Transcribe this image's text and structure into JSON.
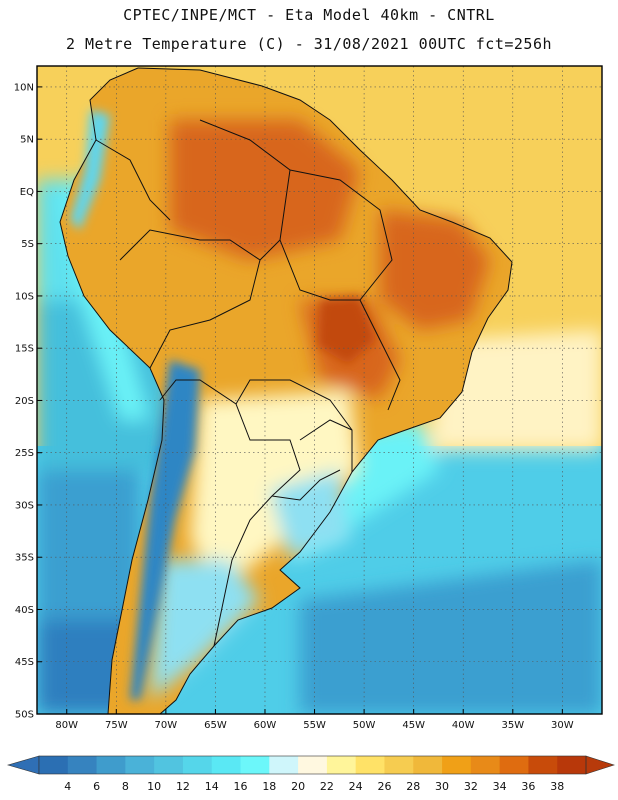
{
  "header": {
    "line1": "CPTEC/INPE/MCT -  Eta Model 40km - CNTRL",
    "line2": "2 Metre Temperature (C) - 31/08/2021 00UTC fct=256h"
  },
  "map": {
    "lat_labels": [
      "10N",
      "5N",
      "EQ",
      "5S",
      "10S",
      "15S",
      "20S",
      "25S",
      "30S",
      "35S",
      "40S",
      "45S",
      "50S"
    ],
    "lat_values": [
      10,
      5,
      0,
      -5,
      -10,
      -15,
      -20,
      -25,
      -30,
      -35,
      -40,
      -45,
      -50
    ],
    "lon_labels": [
      "80W",
      "75W",
      "70W",
      "65W",
      "60W",
      "55W",
      "50W",
      "45W",
      "40W",
      "35W",
      "30W"
    ],
    "lon_values": [
      -80,
      -75,
      -70,
      -65,
      -60,
      -55,
      -50,
      -45,
      -40,
      -35,
      -30
    ],
    "lon_range": [
      -83,
      -26
    ],
    "lat_range": [
      -50,
      12
    ],
    "ocean_colors": {
      "tropical_atlantic": "#f7d05a",
      "warm_atlantic_pale": "#fff3c4",
      "pacific_north": "#5ee0ee",
      "pacific_mid": "#45bfdc",
      "pacific_south": "#3a9fd0",
      "pacific_deep": "#2f7fbf",
      "south_atlantic": "#4fcde8",
      "coastal_cool": "#6af2f7"
    },
    "land_colors": {
      "amazon": "#eaa62a",
      "hot_core": "#c24a10",
      "hot": "#d8661a",
      "andes_cold": "#2f86c4",
      "andes_cool": "#5fd6ee",
      "south_pale": "#fff7c2",
      "patagonia": "#8ee0f2"
    }
  },
  "colorbar": {
    "labels": [
      "4",
      "6",
      "8",
      "10",
      "12",
      "14",
      "16",
      "18",
      "20",
      "22",
      "24",
      "26",
      "28",
      "30",
      "32",
      "34",
      "36",
      "38"
    ],
    "colors": [
      "#2b6fb3",
      "#3683bf",
      "#3f9ccc",
      "#4ab2d8",
      "#51c4e0",
      "#55d6ea",
      "#5ae8f4",
      "#6cf7fa",
      "#cff6fb",
      "#fff8e0",
      "#fff59a",
      "#ffe267",
      "#f6cc50",
      "#f0b83a",
      "#f0a017",
      "#e88a18",
      "#df6c10",
      "#c84b0a",
      "#b8380a"
    ],
    "end_left": "#2f6fb5",
    "end_right": "#b73a0b"
  }
}
